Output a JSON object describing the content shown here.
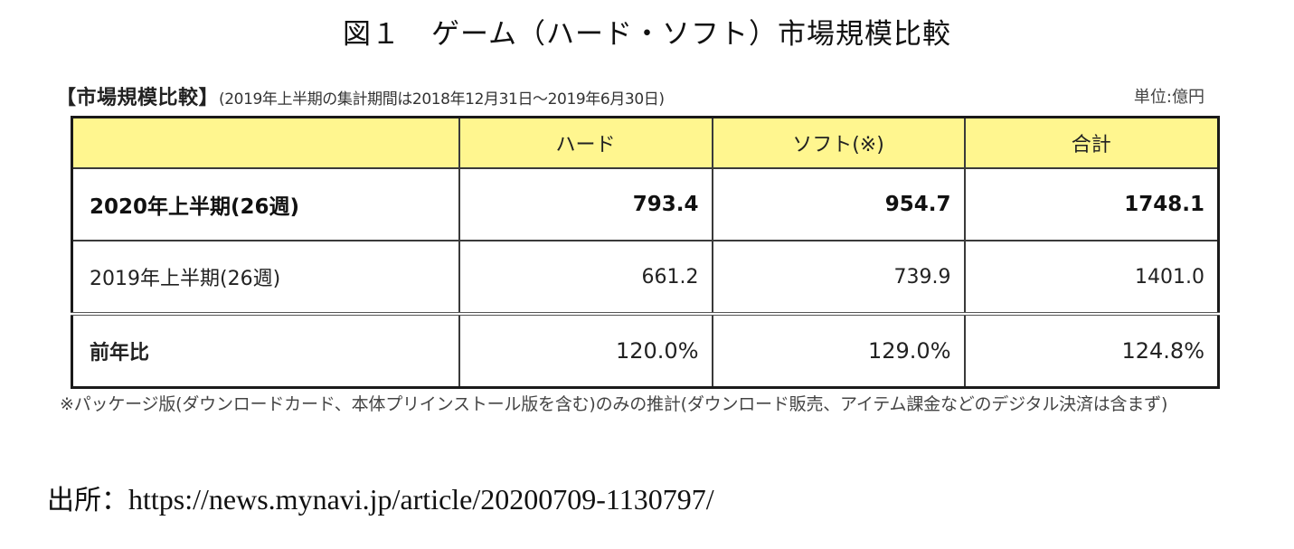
{
  "figure": {
    "number": "図１",
    "title": "ゲーム（ハード・ソフト）市場規模比較"
  },
  "caption": {
    "heading": "【市場規模比較】",
    "period_note": "(2019年上半期の集計期間は2018年12月31日～2019年6月30日)",
    "unit": "単位:億円"
  },
  "table": {
    "headers": [
      "",
      "ハード",
      "ソフト(※)",
      "合計"
    ],
    "rows": [
      {
        "label": "2020年上半期(26週)",
        "hard": "793.4",
        "soft": "954.7",
        "total": "1748.1"
      },
      {
        "label": "2019年上半期(26週)",
        "hard": "661.2",
        "soft": "739.9",
        "total": "1401.0"
      },
      {
        "label": "前年比",
        "hard": "120.0%",
        "soft": "129.0%",
        "total": "124.8%"
      }
    ],
    "header_bg": "#fff68f"
  },
  "footnote": "※パッケージ版(ダウンロードカード、本体プリインストール版を含む)のみの推計(ダウンロード販売、アイテム課金などのデジタル決済は含まず)",
  "source": {
    "label": "出所：",
    "url": "https://news.mynavi.jp/article/20200709-1130797/"
  }
}
